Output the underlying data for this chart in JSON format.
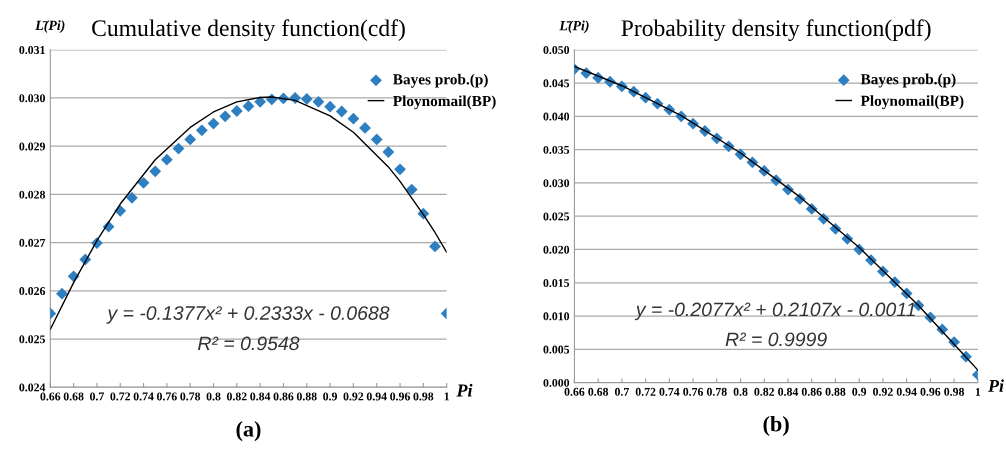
{
  "chart_data": [
    {
      "type": "scatter",
      "title": "Cumulative density function(cdf)",
      "ylabel": "L̄(Pi)",
      "xlabel": "Pi",
      "x": [
        0.66,
        0.67,
        0.68,
        0.69,
        0.7,
        0.71,
        0.72,
        0.73,
        0.74,
        0.75,
        0.76,
        0.77,
        0.78,
        0.79,
        0.8,
        0.81,
        0.82,
        0.83,
        0.84,
        0.85,
        0.86,
        0.87,
        0.88,
        0.89,
        0.9,
        0.91,
        0.92,
        0.93,
        0.94,
        0.95,
        0.96,
        0.97,
        0.98,
        0.99,
        1.0
      ],
      "series": [
        {
          "name": "Bayes prob.(p)",
          "color": "#2e7fc1",
          "marker": "diamond",
          "values": [
            0.02553,
            0.02594,
            0.0263,
            0.02665,
            0.02699,
            0.02733,
            0.02766,
            0.02793,
            0.02824,
            0.02848,
            0.02872,
            0.02895,
            0.02914,
            0.02933,
            0.02947,
            0.02962,
            0.02973,
            0.02983,
            0.02992,
            0.02997,
            0.02999,
            0.03,
            0.02998,
            0.02992,
            0.02982,
            0.02972,
            0.02957,
            0.02938,
            0.02914,
            0.02888,
            0.02852,
            0.0281,
            0.0276,
            0.02692,
            0.02553
          ]
        },
        {
          "name": "Ploynomail(BP)",
          "type": "line",
          "color": "#000000",
          "marker": "none",
          "x": [
            0.66,
            0.68,
            0.7,
            0.72,
            0.75,
            0.78,
            0.8,
            0.82,
            0.84,
            0.85,
            0.87,
            0.9,
            0.92,
            0.95,
            0.96,
            0.98,
            0.99,
            1.0
          ],
          "values": [
            0.0252,
            0.02617,
            0.02704,
            0.0278,
            0.02872,
            0.02939,
            0.02971,
            0.02992,
            0.03001,
            0.03002,
            0.02995,
            0.02963,
            0.02929,
            0.02857,
            0.02827,
            0.02758,
            0.02721,
            0.0268
          ]
        }
      ],
      "xlim": [
        0.66,
        1
      ],
      "xticks": [
        0.66,
        0.68,
        0.7,
        0.72,
        0.74,
        0.76,
        0.78,
        0.8,
        0.82,
        0.84,
        0.86,
        0.88,
        0.9,
        0.92,
        0.94,
        0.96,
        0.98,
        1
      ],
      "ylim": [
        0.024,
        0.031
      ],
      "yticks": [
        {
          "value": 0.024,
          "label": "0.024"
        },
        {
          "value": 0.025,
          "label": "0.025"
        },
        {
          "value": 0.026,
          "label": "0.026"
        },
        {
          "value": 0.027,
          "label": "0.027"
        },
        {
          "value": 0.028,
          "label": "0.028"
        },
        {
          "value": 0.029,
          "label": "0.029"
        },
        {
          "value": 0.03,
          "label": "0.030"
        },
        {
          "value": 0.031,
          "label": "0.031"
        }
      ],
      "grid": "y",
      "legend": "top right",
      "annotations": [
        "y = -0.1377x² + 0.2333x - 0.0688",
        "R² = 0.9548",
        "(a)"
      ]
    },
    {
      "type": "scatter",
      "title": "Probability density function(pdf)",
      "ylabel": "L̄(Pi)",
      "xlabel": "Pi",
      "x": [
        0.66,
        0.67,
        0.68,
        0.69,
        0.7,
        0.71,
        0.72,
        0.73,
        0.74,
        0.75,
        0.76,
        0.77,
        0.78,
        0.79,
        0.8,
        0.81,
        0.82,
        0.83,
        0.84,
        0.85,
        0.86,
        0.87,
        0.88,
        0.89,
        0.9,
        0.91,
        0.92,
        0.93,
        0.94,
        0.95,
        0.96,
        0.97,
        0.98,
        0.99,
        1.0
      ],
      "series": [
        {
          "name": "Bayes prob.(p)",
          "color": "#2e7fc1",
          "marker": "diamond",
          "values": [
            0.0471,
            0.0465,
            0.0458,
            0.0452,
            0.0445,
            0.0437,
            0.0428,
            0.0419,
            0.041,
            0.04,
            0.0389,
            0.0378,
            0.0367,
            0.0355,
            0.0343,
            0.0331,
            0.0318,
            0.0304,
            0.029,
            0.0276,
            0.0261,
            0.0246,
            0.0231,
            0.0216,
            0.02,
            0.0184,
            0.0167,
            0.0151,
            0.0134,
            0.0116,
            0.0098,
            0.008,
            0.0061,
            0.0039,
            0.0012
          ]
        },
        {
          "name": "Ploynomail(BP)",
          "type": "line",
          "color": "#000000",
          "marker": "none",
          "x": [
            0.66,
            0.7,
            0.75,
            0.8,
            0.85,
            0.9,
            0.95,
            1.0
          ],
          "values": [
            0.0475,
            0.0446,
            0.0401,
            0.0345,
            0.0279,
            0.0203,
            0.0116,
            0.0019
          ]
        }
      ],
      "xlim": [
        0.66,
        1
      ],
      "xticks": [
        0.66,
        0.68,
        0.7,
        0.72,
        0.74,
        0.76,
        0.78,
        0.8,
        0.82,
        0.84,
        0.86,
        0.88,
        0.9,
        0.92,
        0.94,
        0.96,
        0.98,
        1
      ],
      "ylim": [
        0,
        0.05
      ],
      "yticks": [
        {
          "value": 0,
          "label": "0.000"
        },
        {
          "value": 0.005,
          "label": "0.005"
        },
        {
          "value": 0.01,
          "label": "0.010"
        },
        {
          "value": 0.015,
          "label": "0.015"
        },
        {
          "value": 0.02,
          "label": "0.020"
        },
        {
          "value": 0.025,
          "label": "0.025"
        },
        {
          "value": 0.03,
          "label": "0.030"
        },
        {
          "value": 0.035,
          "label": "0.035"
        },
        {
          "value": 0.04,
          "label": "0.040"
        },
        {
          "value": 0.045,
          "label": "0.045"
        },
        {
          "value": 0.05,
          "label": "0.050"
        }
      ],
      "grid": "y",
      "legend": "top right",
      "annotations": [
        "y = -0.2077x² + 0.2107x - 0.0011",
        "R² = 0.9999",
        "(b)"
      ]
    }
  ]
}
